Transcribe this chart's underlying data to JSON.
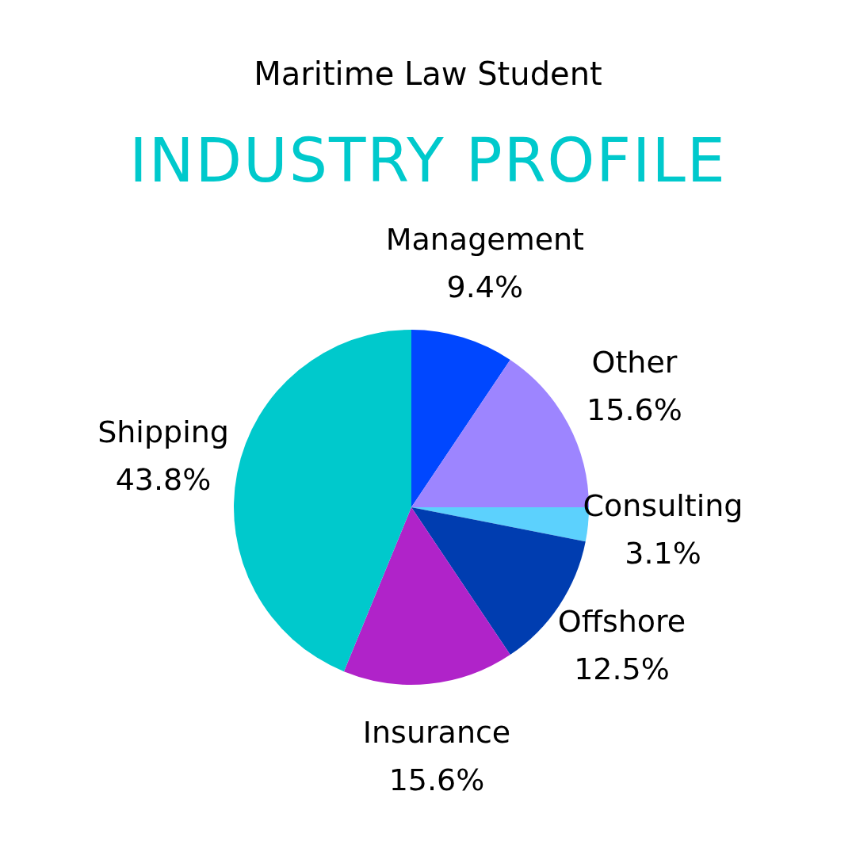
{
  "chart_data": {
    "type": "pie",
    "title": "INDUSTRY PROFILE",
    "subtitle": "Maritime Law Student",
    "categories": [
      "Management",
      "Other",
      "Consulting",
      "Offshore",
      "Insurance",
      "Shipping"
    ],
    "values": [
      9.4,
      15.6,
      3.1,
      12.5,
      15.6,
      43.8
    ],
    "value_labels": [
      "9.4%",
      "15.6%",
      "3.1%",
      "12.5%",
      "15.6%",
      "43.8%"
    ],
    "colors": [
      "#0047ff",
      "#9d85ff",
      "#5cd1fd",
      "#003db0",
      "#b023c9",
      "#00c9cc"
    ],
    "legend": false
  }
}
